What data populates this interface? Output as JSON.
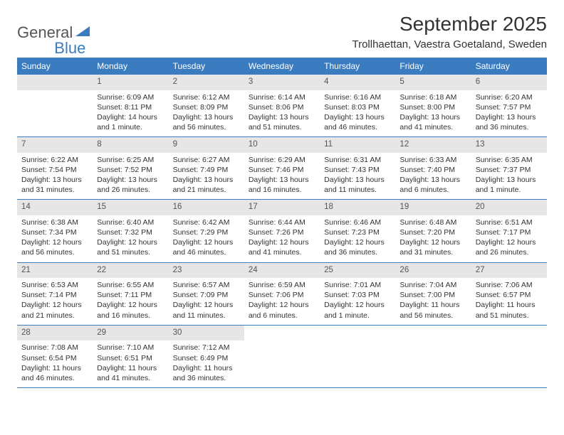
{
  "logo": {
    "text1": "General",
    "text2": "Blue"
  },
  "title": "September 2025",
  "location": "Trollhaettan, Vaestra Goetaland, Sweden",
  "colors": {
    "header_bg": "#3b7bbf",
    "header_text": "#ffffff",
    "daynum_bg": "#e6e6e6",
    "daynum_text": "#555555",
    "body_text": "#333333",
    "logo_gray": "#555555",
    "logo_blue": "#3b7bbf",
    "rule": "#3b7bbf"
  },
  "day_names": [
    "Sunday",
    "Monday",
    "Tuesday",
    "Wednesday",
    "Thursday",
    "Friday",
    "Saturday"
  ],
  "weeks": [
    [
      {
        "blank": true
      },
      {
        "num": "1",
        "sunrise": "Sunrise: 6:09 AM",
        "sunset": "Sunset: 8:11 PM",
        "daylight": "Daylight: 14 hours and 1 minute."
      },
      {
        "num": "2",
        "sunrise": "Sunrise: 6:12 AM",
        "sunset": "Sunset: 8:09 PM",
        "daylight": "Daylight: 13 hours and 56 minutes."
      },
      {
        "num": "3",
        "sunrise": "Sunrise: 6:14 AM",
        "sunset": "Sunset: 8:06 PM",
        "daylight": "Daylight: 13 hours and 51 minutes."
      },
      {
        "num": "4",
        "sunrise": "Sunrise: 6:16 AM",
        "sunset": "Sunset: 8:03 PM",
        "daylight": "Daylight: 13 hours and 46 minutes."
      },
      {
        "num": "5",
        "sunrise": "Sunrise: 6:18 AM",
        "sunset": "Sunset: 8:00 PM",
        "daylight": "Daylight: 13 hours and 41 minutes."
      },
      {
        "num": "6",
        "sunrise": "Sunrise: 6:20 AM",
        "sunset": "Sunset: 7:57 PM",
        "daylight": "Daylight: 13 hours and 36 minutes."
      }
    ],
    [
      {
        "num": "7",
        "sunrise": "Sunrise: 6:22 AM",
        "sunset": "Sunset: 7:54 PM",
        "daylight": "Daylight: 13 hours and 31 minutes."
      },
      {
        "num": "8",
        "sunrise": "Sunrise: 6:25 AM",
        "sunset": "Sunset: 7:52 PM",
        "daylight": "Daylight: 13 hours and 26 minutes."
      },
      {
        "num": "9",
        "sunrise": "Sunrise: 6:27 AM",
        "sunset": "Sunset: 7:49 PM",
        "daylight": "Daylight: 13 hours and 21 minutes."
      },
      {
        "num": "10",
        "sunrise": "Sunrise: 6:29 AM",
        "sunset": "Sunset: 7:46 PM",
        "daylight": "Daylight: 13 hours and 16 minutes."
      },
      {
        "num": "11",
        "sunrise": "Sunrise: 6:31 AM",
        "sunset": "Sunset: 7:43 PM",
        "daylight": "Daylight: 13 hours and 11 minutes."
      },
      {
        "num": "12",
        "sunrise": "Sunrise: 6:33 AM",
        "sunset": "Sunset: 7:40 PM",
        "daylight": "Daylight: 13 hours and 6 minutes."
      },
      {
        "num": "13",
        "sunrise": "Sunrise: 6:35 AM",
        "sunset": "Sunset: 7:37 PM",
        "daylight": "Daylight: 13 hours and 1 minute."
      }
    ],
    [
      {
        "num": "14",
        "sunrise": "Sunrise: 6:38 AM",
        "sunset": "Sunset: 7:34 PM",
        "daylight": "Daylight: 12 hours and 56 minutes."
      },
      {
        "num": "15",
        "sunrise": "Sunrise: 6:40 AM",
        "sunset": "Sunset: 7:32 PM",
        "daylight": "Daylight: 12 hours and 51 minutes."
      },
      {
        "num": "16",
        "sunrise": "Sunrise: 6:42 AM",
        "sunset": "Sunset: 7:29 PM",
        "daylight": "Daylight: 12 hours and 46 minutes."
      },
      {
        "num": "17",
        "sunrise": "Sunrise: 6:44 AM",
        "sunset": "Sunset: 7:26 PM",
        "daylight": "Daylight: 12 hours and 41 minutes."
      },
      {
        "num": "18",
        "sunrise": "Sunrise: 6:46 AM",
        "sunset": "Sunset: 7:23 PM",
        "daylight": "Daylight: 12 hours and 36 minutes."
      },
      {
        "num": "19",
        "sunrise": "Sunrise: 6:48 AM",
        "sunset": "Sunset: 7:20 PM",
        "daylight": "Daylight: 12 hours and 31 minutes."
      },
      {
        "num": "20",
        "sunrise": "Sunrise: 6:51 AM",
        "sunset": "Sunset: 7:17 PM",
        "daylight": "Daylight: 12 hours and 26 minutes."
      }
    ],
    [
      {
        "num": "21",
        "sunrise": "Sunrise: 6:53 AM",
        "sunset": "Sunset: 7:14 PM",
        "daylight": "Daylight: 12 hours and 21 minutes."
      },
      {
        "num": "22",
        "sunrise": "Sunrise: 6:55 AM",
        "sunset": "Sunset: 7:11 PM",
        "daylight": "Daylight: 12 hours and 16 minutes."
      },
      {
        "num": "23",
        "sunrise": "Sunrise: 6:57 AM",
        "sunset": "Sunset: 7:09 PM",
        "daylight": "Daylight: 12 hours and 11 minutes."
      },
      {
        "num": "24",
        "sunrise": "Sunrise: 6:59 AM",
        "sunset": "Sunset: 7:06 PM",
        "daylight": "Daylight: 12 hours and 6 minutes."
      },
      {
        "num": "25",
        "sunrise": "Sunrise: 7:01 AM",
        "sunset": "Sunset: 7:03 PM",
        "daylight": "Daylight: 12 hours and 1 minute."
      },
      {
        "num": "26",
        "sunrise": "Sunrise: 7:04 AM",
        "sunset": "Sunset: 7:00 PM",
        "daylight": "Daylight: 11 hours and 56 minutes."
      },
      {
        "num": "27",
        "sunrise": "Sunrise: 7:06 AM",
        "sunset": "Sunset: 6:57 PM",
        "daylight": "Daylight: 11 hours and 51 minutes."
      }
    ],
    [
      {
        "num": "28",
        "sunrise": "Sunrise: 7:08 AM",
        "sunset": "Sunset: 6:54 PM",
        "daylight": "Daylight: 11 hours and 46 minutes."
      },
      {
        "num": "29",
        "sunrise": "Sunrise: 7:10 AM",
        "sunset": "Sunset: 6:51 PM",
        "daylight": "Daylight: 11 hours and 41 minutes."
      },
      {
        "num": "30",
        "sunrise": "Sunrise: 7:12 AM",
        "sunset": "Sunset: 6:49 PM",
        "daylight": "Daylight: 11 hours and 36 minutes."
      },
      {
        "blank": true
      },
      {
        "blank": true
      },
      {
        "blank": true
      },
      {
        "blank": true
      }
    ]
  ]
}
